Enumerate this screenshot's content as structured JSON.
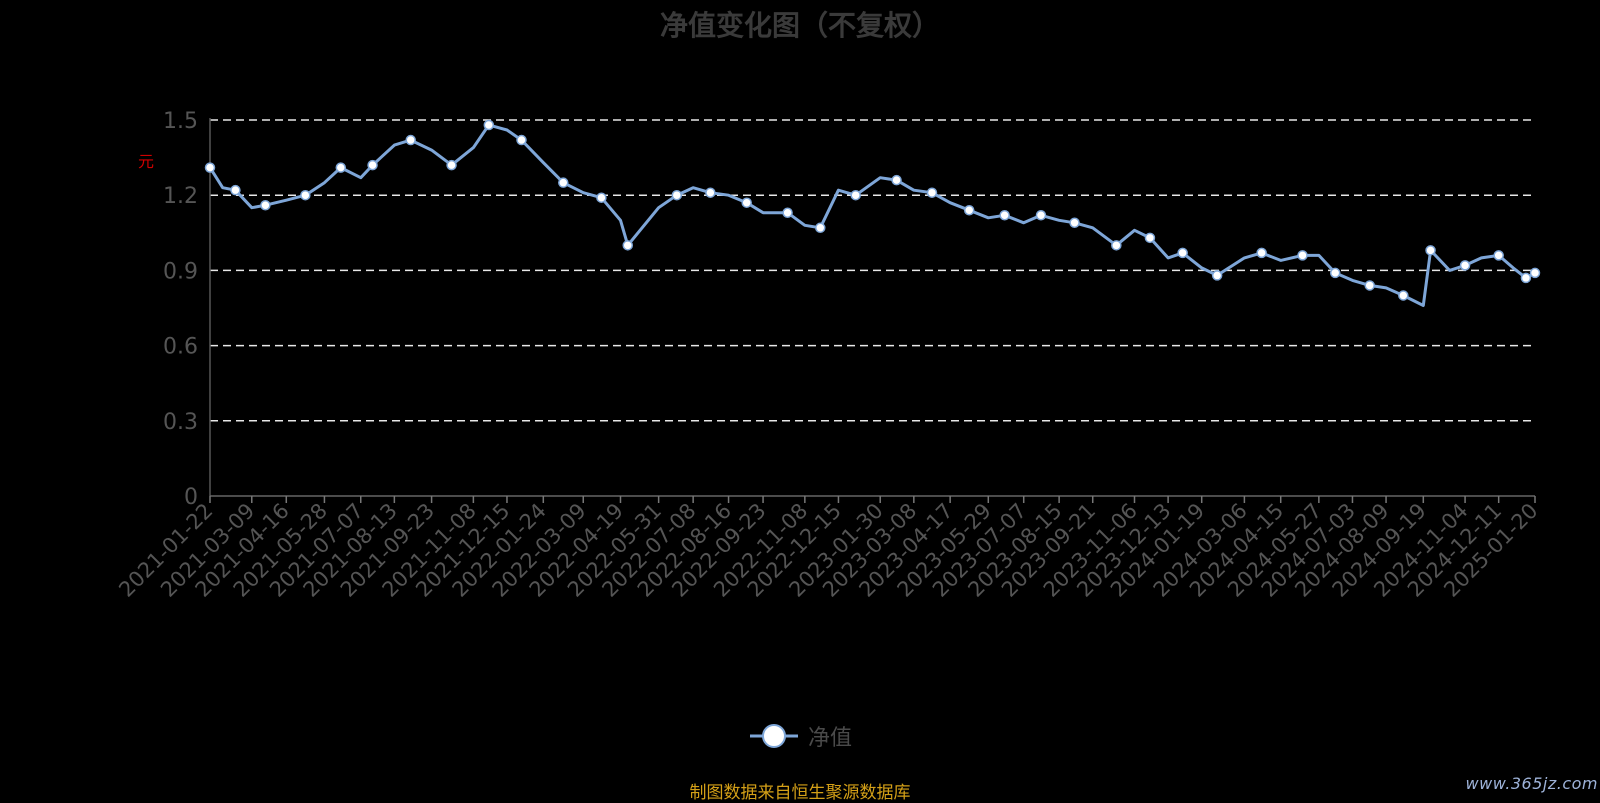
{
  "chart_data": {
    "type": "line",
    "title": "净值变化图（不复权）",
    "ylabel": "元",
    "ylim": [
      0,
      1.5
    ],
    "y_ticks": [
      "0",
      "0.3",
      "0.6",
      "0.9",
      "1.2",
      "1.5"
    ],
    "grid": true,
    "legend_position": "bottom",
    "series": [
      {
        "name": "净值",
        "color": "#7ea6d8",
        "x": [
          "2021-01-22",
          "2021-02-05",
          "2021-02-19",
          "2021-03-09",
          "2021-03-24",
          "2021-04-16",
          "2021-05-07",
          "2021-05-28",
          "2021-06-15",
          "2021-07-07",
          "2021-07-20",
          "2021-08-13",
          "2021-08-31",
          "2021-09-23",
          "2021-10-15",
          "2021-11-08",
          "2021-11-25",
          "2021-12-15",
          "2021-12-31",
          "2022-01-24",
          "2022-02-15",
          "2022-03-09",
          "2022-03-29",
          "2022-04-19",
          "2022-04-27",
          "2022-05-31",
          "2022-06-20",
          "2022-07-08",
          "2022-07-27",
          "2022-08-16",
          "2022-09-05",
          "2022-09-23",
          "2022-10-20",
          "2022-11-08",
          "2022-11-25",
          "2022-12-15",
          "2023-01-03",
          "2023-01-30",
          "2023-02-17",
          "2023-03-08",
          "2023-03-28",
          "2023-04-17",
          "2023-05-08",
          "2023-05-29",
          "2023-06-16",
          "2023-07-07",
          "2023-07-26",
          "2023-08-15",
          "2023-09-01",
          "2023-09-21",
          "2023-10-17",
          "2023-11-06",
          "2023-11-23",
          "2023-12-13",
          "2023-12-29",
          "2024-01-19",
          "2024-02-05",
          "2024-03-06",
          "2024-03-25",
          "2024-04-15",
          "2024-05-09",
          "2024-05-27",
          "2024-06-14",
          "2024-07-03",
          "2024-07-22",
          "2024-08-09",
          "2024-08-28",
          "2024-09-19",
          "2024-09-27",
          "2024-10-18",
          "2024-11-04",
          "2024-11-22",
          "2024-12-11",
          "2024-12-27",
          "2025-01-10",
          "2025-01-20"
        ],
        "values": [
          1.31,
          1.23,
          1.22,
          1.15,
          1.16,
          1.18,
          1.2,
          1.25,
          1.31,
          1.27,
          1.32,
          1.4,
          1.42,
          1.38,
          1.32,
          1.39,
          1.48,
          1.46,
          1.42,
          1.33,
          1.25,
          1.21,
          1.19,
          1.1,
          1.0,
          1.15,
          1.2,
          1.23,
          1.21,
          1.2,
          1.17,
          1.13,
          1.13,
          1.08,
          1.07,
          1.22,
          1.2,
          1.27,
          1.26,
          1.22,
          1.21,
          1.17,
          1.14,
          1.11,
          1.12,
          1.09,
          1.12,
          1.1,
          1.09,
          1.07,
          1.0,
          1.06,
          1.03,
          0.95,
          0.97,
          0.91,
          0.88,
          0.95,
          0.97,
          0.94,
          0.96,
          0.96,
          0.89,
          0.86,
          0.84,
          0.83,
          0.8,
          0.76,
          0.98,
          0.9,
          0.92,
          0.95,
          0.96,
          0.91,
          0.87,
          0.89
        ]
      }
    ],
    "x_tick_labels": [
      "2021-01-22",
      "2021-03-09",
      "2021-04-16",
      "2021-05-28",
      "2021-07-07",
      "2021-08-13",
      "2021-09-23",
      "2021-11-08",
      "2021-12-15",
      "2022-01-24",
      "2022-03-09",
      "2022-04-19",
      "2022-05-31",
      "2022-07-08",
      "2022-08-16",
      "2022-09-23",
      "2022-11-08",
      "2022-12-15",
      "2023-01-30",
      "2023-03-08",
      "2023-04-17",
      "2023-05-29",
      "2023-07-07",
      "2023-08-15",
      "2023-09-21",
      "2023-11-06",
      "2023-12-13",
      "2024-01-19",
      "2024-03-06",
      "2024-04-15",
      "2024-05-27",
      "2024-07-03",
      "2024-08-09",
      "2024-09-19",
      "2024-11-04",
      "2024-12-11",
      "2025-01-20"
    ]
  },
  "legend": {
    "label": "净值"
  },
  "source_note": "制图数据来自恒生聚源数据库",
  "watermark": "www.365jz.com"
}
